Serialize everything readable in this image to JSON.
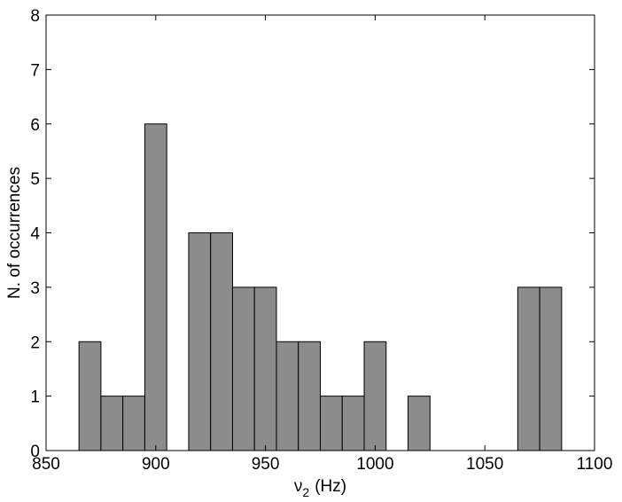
{
  "chart_data": {
    "type": "bar",
    "title": "",
    "xlabel": "ν₂ (Hz)",
    "xlabel_parts": {
      "symbol": "ν",
      "subscript": "2",
      "unit": "(Hz)"
    },
    "ylabel": "N. of occurrences",
    "xlim": [
      850,
      1100
    ],
    "ylim": [
      0,
      8
    ],
    "xticks": [
      850,
      900,
      950,
      1000,
      1050,
      1100
    ],
    "yticks": [
      0,
      1,
      2,
      3,
      4,
      5,
      6,
      7,
      8
    ],
    "bin_width": 10,
    "bins": [
      {
        "center": 870,
        "count": 2
      },
      {
        "center": 880,
        "count": 1
      },
      {
        "center": 890,
        "count": 1
      },
      {
        "center": 900,
        "count": 6
      },
      {
        "center": 920,
        "count": 4
      },
      {
        "center": 930,
        "count": 4
      },
      {
        "center": 940,
        "count": 3
      },
      {
        "center": 950,
        "count": 3
      },
      {
        "center": 960,
        "count": 2
      },
      {
        "center": 970,
        "count": 2
      },
      {
        "center": 980,
        "count": 1
      },
      {
        "center": 990,
        "count": 1
      },
      {
        "center": 1000,
        "count": 2
      },
      {
        "center": 1020,
        "count": 1
      },
      {
        "center": 1070,
        "count": 3
      },
      {
        "center": 1080,
        "count": 3
      }
    ],
    "bar_color": "#8c8c8c",
    "edge_color": "#000000",
    "grid": false,
    "legend": "none"
  }
}
